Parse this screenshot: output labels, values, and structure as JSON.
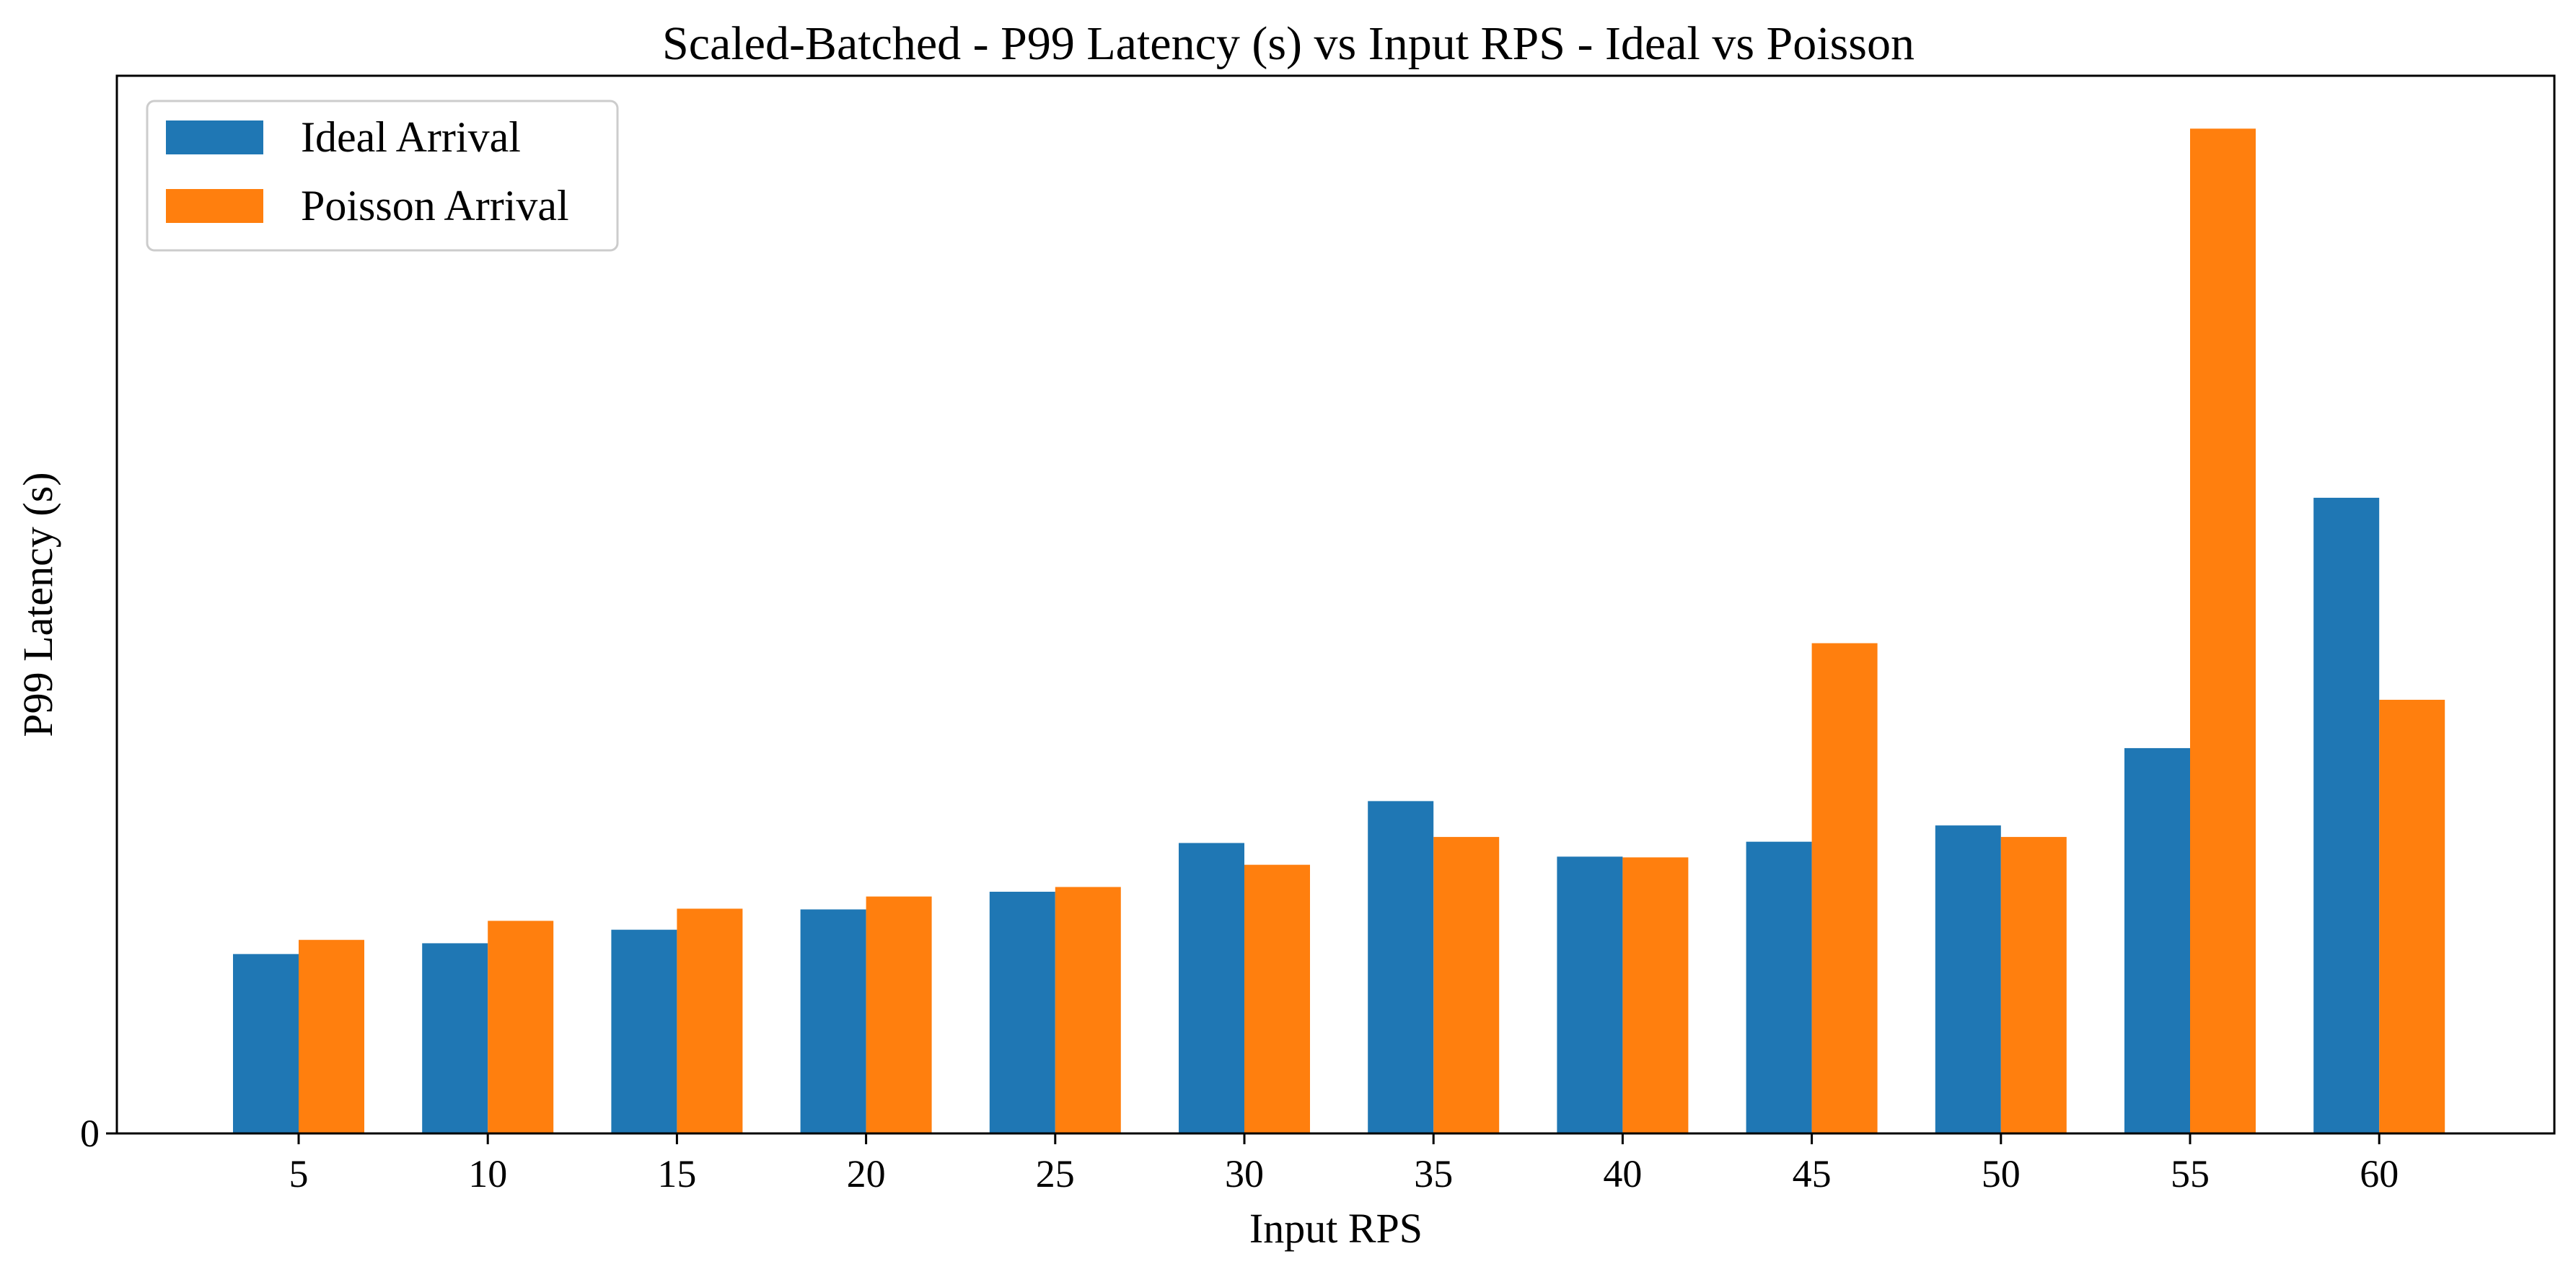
{
  "colors": {
    "ideal": "#1f77b4",
    "poisson": "#ff7f0e",
    "legend_border": "#cccccc",
    "axis": "#000000"
  },
  "chart_data": {
    "type": "bar",
    "title": "Scaled-Batched - P99 Latency (s) vs Input RPS - Ideal vs Poisson",
    "xlabel": "Input RPS",
    "ylabel": "P99 Latency (s)",
    "categories": [
      "5",
      "10",
      "15",
      "20",
      "25",
      "30",
      "35",
      "40",
      "45",
      "50",
      "55",
      "60"
    ],
    "y_ticks": [
      "0"
    ],
    "ylim": [
      0,
      1.0
    ],
    "grid": false,
    "legend": {
      "position": "top-left"
    },
    "series": [
      {
        "name": "Ideal Arrival",
        "color": "#1f77b4",
        "values": [
          0.1696,
          0.1798,
          0.1926,
          0.2118,
          0.2285,
          0.2746,
          0.3142,
          0.2617,
          0.2758,
          0.2912,
          0.3643,
          0.601
        ]
      },
      {
        "name": "Poisson Arrival",
        "color": "#ff7f0e",
        "values": [
          0.183,
          0.201,
          0.2125,
          0.224,
          0.233,
          0.254,
          0.2803,
          0.261,
          0.4635,
          0.2803,
          0.95,
          0.41
        ]
      }
    ]
  }
}
